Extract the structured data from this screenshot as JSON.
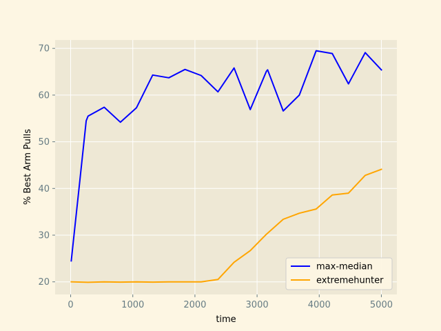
{
  "chart_data": {
    "type": "line",
    "title": "",
    "xlabel": "time",
    "ylabel": "% Best Arm Pulls",
    "xlim": [
      -250,
      5250
    ],
    "ylim": [
      17.3,
      71.8
    ],
    "xticks": [
      0,
      1000,
      2000,
      3000,
      4000,
      5000
    ],
    "yticks": [
      20,
      30,
      40,
      50,
      60,
      70
    ],
    "grid": true,
    "legend_position": "lower-right",
    "series": [
      {
        "name": "max-median",
        "color": "#0000ff",
        "x": [
          10,
          150,
          250,
          280,
          540,
          800,
          1060,
          1320,
          1580,
          1840,
          2100,
          2370,
          2630,
          2890,
          3150,
          3170,
          3420,
          3680,
          3950,
          4210,
          4470,
          4740,
          5000
        ],
        "y": [
          24.5,
          42,
          54.5,
          55.5,
          57.4,
          54.2,
          57.3,
          64.3,
          63.7,
          65.5,
          64.2,
          60.7,
          65.8,
          56.9,
          65.1,
          65.4,
          56.6,
          60.0,
          69.5,
          68.9,
          62.4,
          69.1,
          65.4
        ]
      },
      {
        "name": "extremehunter",
        "color": "#ffa500",
        "x": [
          10,
          280,
          540,
          800,
          1060,
          1320,
          1580,
          1840,
          2100,
          2370,
          2630,
          2890,
          3150,
          3420,
          3680,
          3950,
          4210,
          4470,
          4740,
          5000
        ],
        "y": [
          20.0,
          19.9,
          20.0,
          19.95,
          20.0,
          19.95,
          20.0,
          20.0,
          20.0,
          20.5,
          24.2,
          26.7,
          30.2,
          33.4,
          34.7,
          35.6,
          38.6,
          39.0,
          42.8,
          44.1
        ]
      }
    ]
  }
}
